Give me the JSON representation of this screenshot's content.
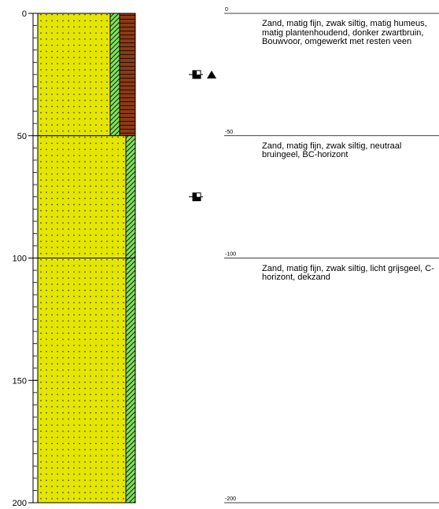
{
  "axis": {
    "ticks": [
      0,
      50,
      100,
      150,
      200
    ],
    "minor_interval": 5,
    "range": [
      0,
      200
    ]
  },
  "layers": [
    {
      "top": 0,
      "bottom": 50,
      "colors": [
        "#e5e600",
        "#7fe05a",
        "#8b3a14"
      ],
      "description": "Zand, matig fijn, zwak siltig, matig humeus, matig plantenhoudend, donker zwartbruin, Bouwvoor, omgewerkt met resten veen"
    },
    {
      "top": 50,
      "bottom": 100,
      "colors": [
        "#e5e600",
        "#7fe05a"
      ],
      "description": "Zand, matig fijn, zwak siltig, neutraal bruingeel, BC-horizont"
    },
    {
      "top": 100,
      "bottom": 200,
      "colors": [
        "#e5e600",
        "#7fe05a"
      ],
      "description": "Zand, matig fijn, zwak siltig, licht grijsgeel, C-horizont, dekzand"
    }
  ],
  "depth_labels": [
    {
      "value": 0,
      "label": "0"
    },
    {
      "value": -50,
      "label": "-50"
    },
    {
      "value": -100,
      "label": "-100"
    },
    {
      "value": -200,
      "label": "-200"
    }
  ],
  "samples": [
    25,
    75
  ],
  "triangles": [
    25
  ]
}
